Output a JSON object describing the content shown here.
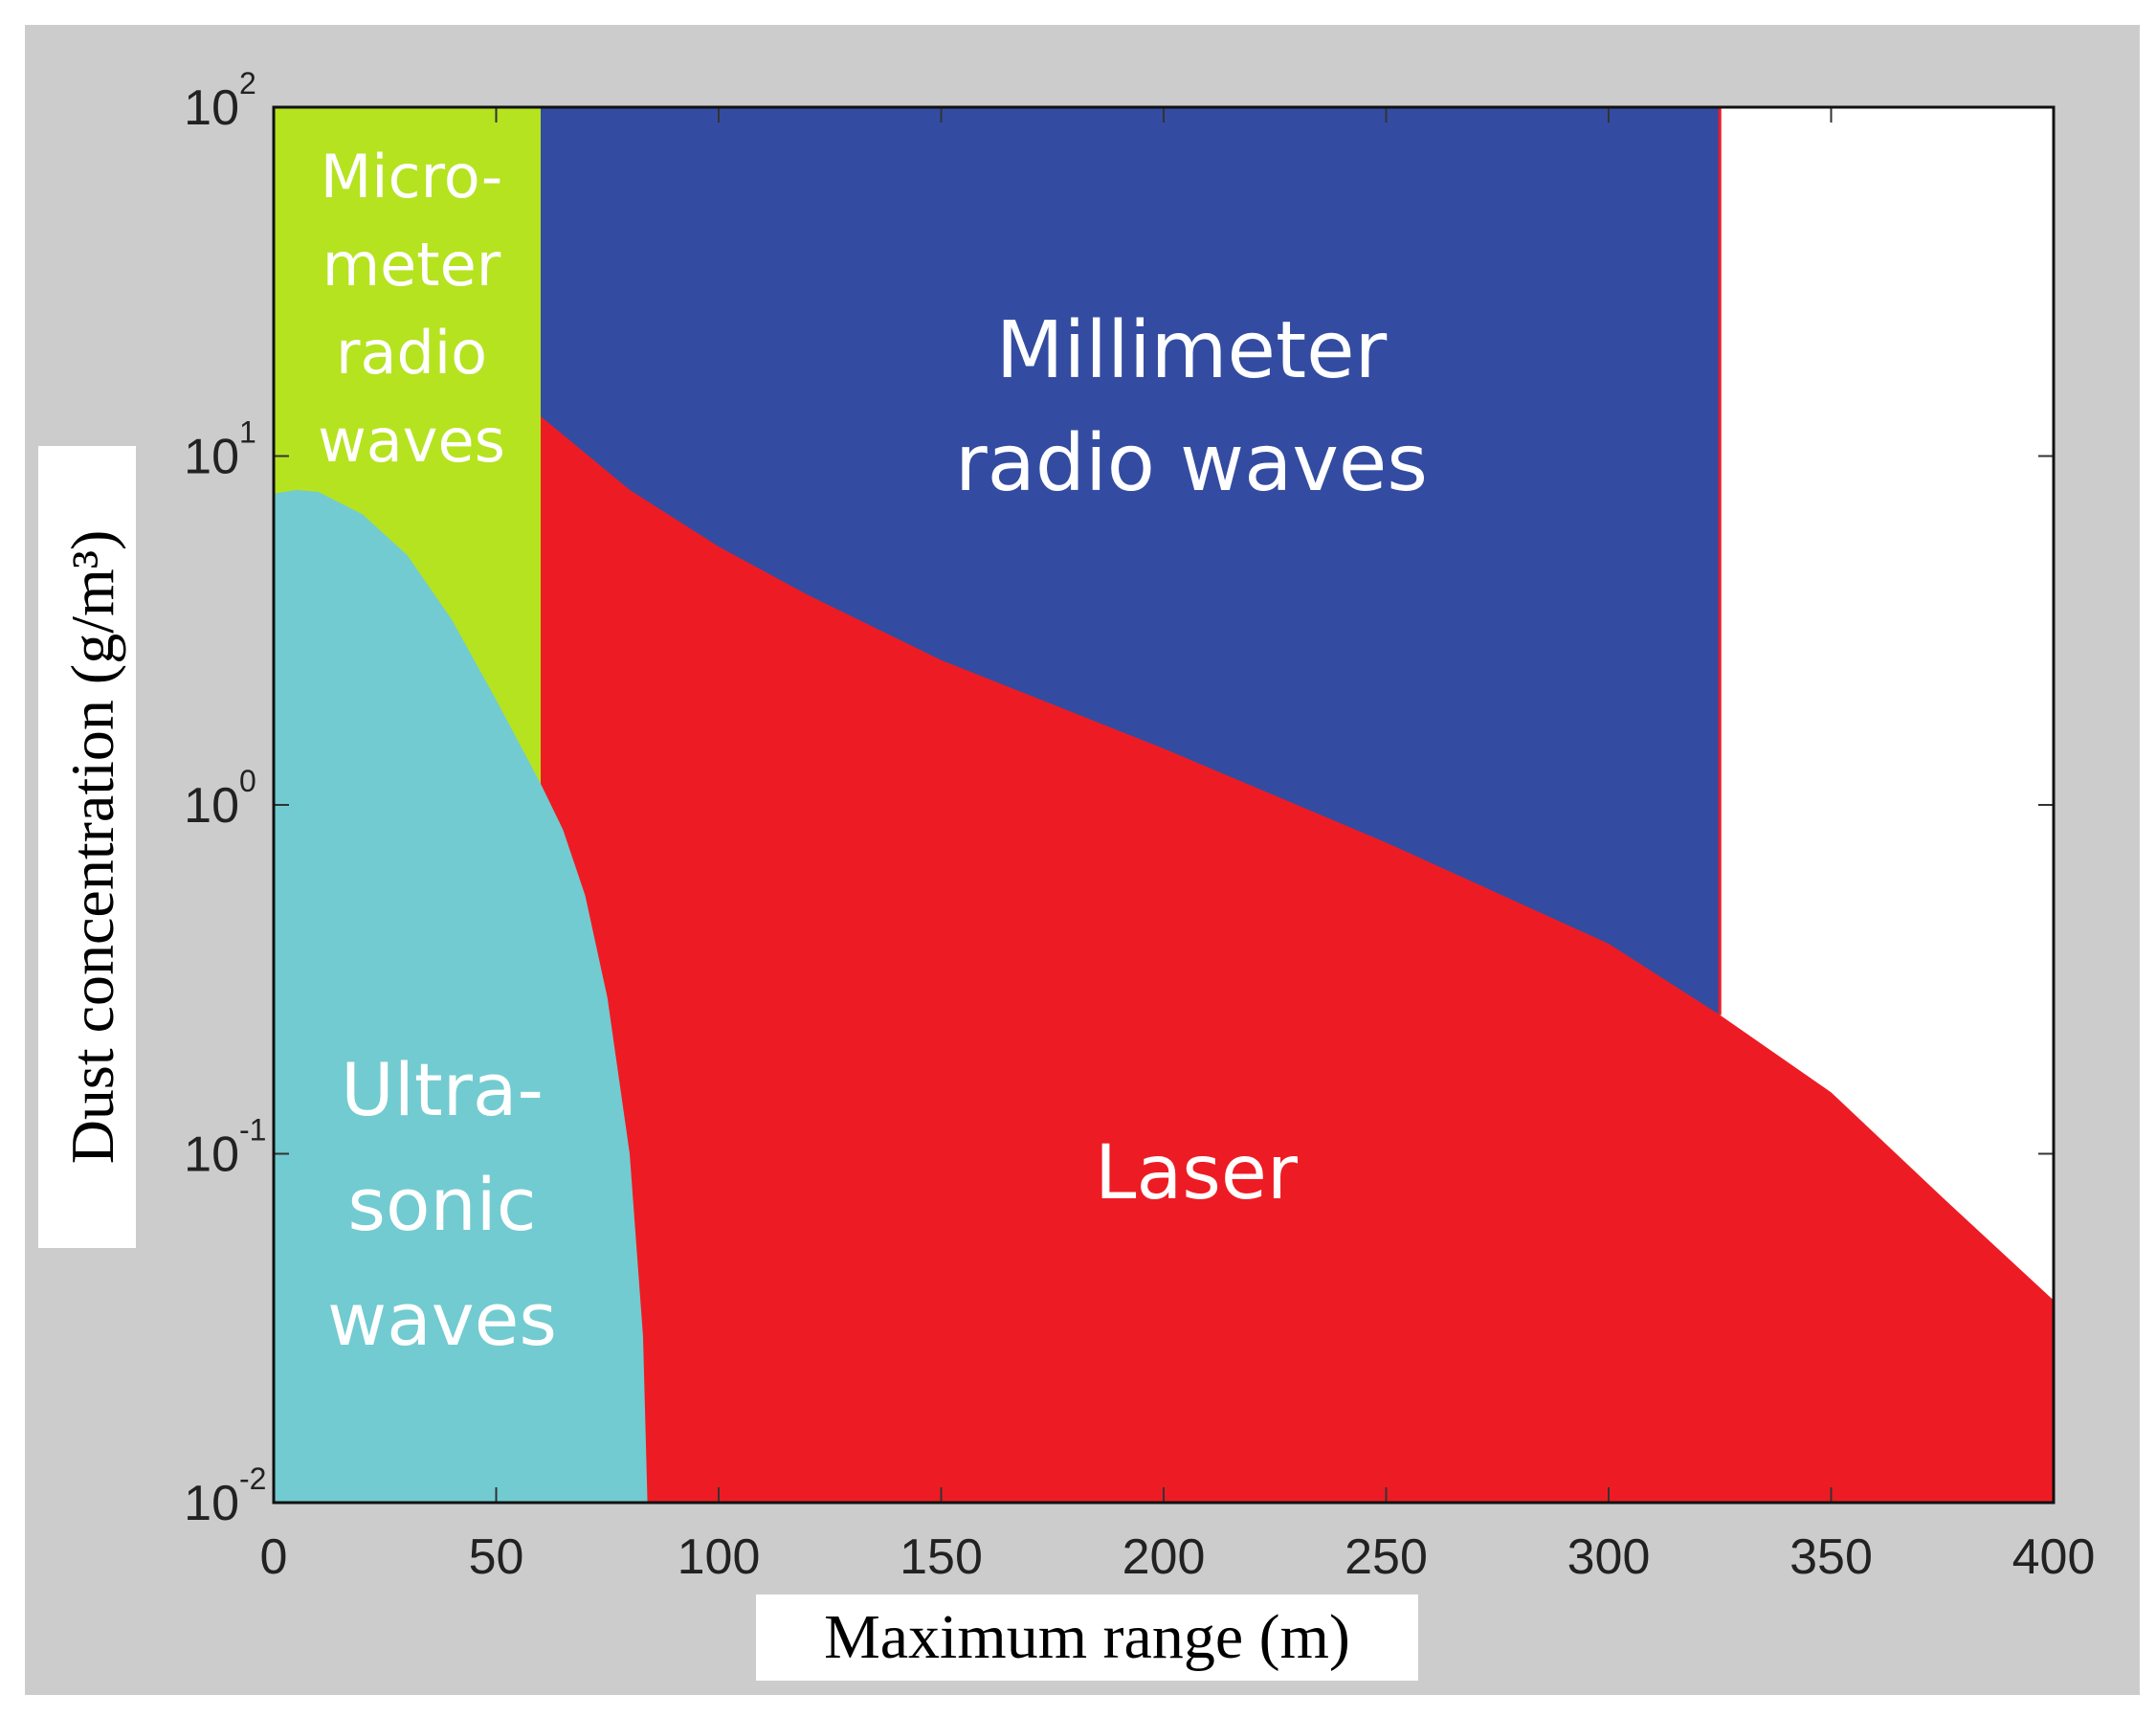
{
  "chart_data": {
    "type": "area",
    "title": "",
    "xlabel": "Maximum range (m)",
    "ylabel": "Dust concentration (g/m³)",
    "xlim": [
      0,
      400
    ],
    "ylim": [
      0.01,
      100
    ],
    "yscale": "log",
    "x_ticks": [
      0,
      50,
      100,
      150,
      200,
      250,
      300,
      350,
      400
    ],
    "x_tick_labels": [
      "0",
      "50",
      "100",
      "150",
      "200",
      "250",
      "300",
      "350",
      "400"
    ],
    "y_ticks": [
      {
        "value": 0.01,
        "base": "10",
        "exp": "-2"
      },
      {
        "value": 0.1,
        "base": "10",
        "exp": "-1"
      },
      {
        "value": 1,
        "base": "10",
        "exp": "0"
      },
      {
        "value": 10,
        "base": "10",
        "exp": "1"
      },
      {
        "value": 100,
        "base": "10",
        "exp": "2"
      }
    ],
    "colors": {
      "frame": "#cccccc",
      "micrometer": "#b5e320",
      "millimeter": "#334ca1",
      "laser": "#ed1c24",
      "ultrasonic": "#72cbd0",
      "plot_bg": "#ffffff"
    },
    "series": [
      {
        "name": "Ultrasonic waves",
        "label_lines": [
          "Ultra-",
          "sonic",
          "waves"
        ],
        "boundary": [
          [
            0,
            7.8
          ],
          [
            5,
            8.0
          ],
          [
            10,
            7.9
          ],
          [
            20,
            6.8
          ],
          [
            30,
            5.2
          ],
          [
            40,
            3.4
          ],
          [
            50,
            2.0
          ],
          [
            60,
            1.15
          ],
          [
            65,
            0.85
          ],
          [
            70,
            0.55
          ],
          [
            75,
            0.28
          ],
          [
            80,
            0.1
          ],
          [
            83,
            0.03
          ],
          [
            84,
            0.01
          ]
        ]
      },
      {
        "name": "Micrometer radio waves",
        "label_lines": [
          "Micro-",
          "meter",
          "radio",
          "waves"
        ],
        "x_range": [
          0,
          60
        ]
      },
      {
        "name": "Millimeter radio waves",
        "label_lines": [
          "Millimeter",
          "radio waves"
        ],
        "x_range": [
          60,
          325
        ]
      },
      {
        "name": "Laser",
        "label_lines": [
          "Laser"
        ],
        "boundary": [
          [
            60,
            13
          ],
          [
            80,
            8
          ],
          [
            100,
            5.5
          ],
          [
            120,
            4
          ],
          [
            150,
            2.6
          ],
          [
            200,
            1.45
          ],
          [
            250,
            0.78
          ],
          [
            300,
            0.4
          ],
          [
            325,
            0.25
          ],
          [
            350,
            0.15
          ],
          [
            375,
            0.075
          ],
          [
            400,
            0.038
          ]
        ]
      }
    ]
  }
}
